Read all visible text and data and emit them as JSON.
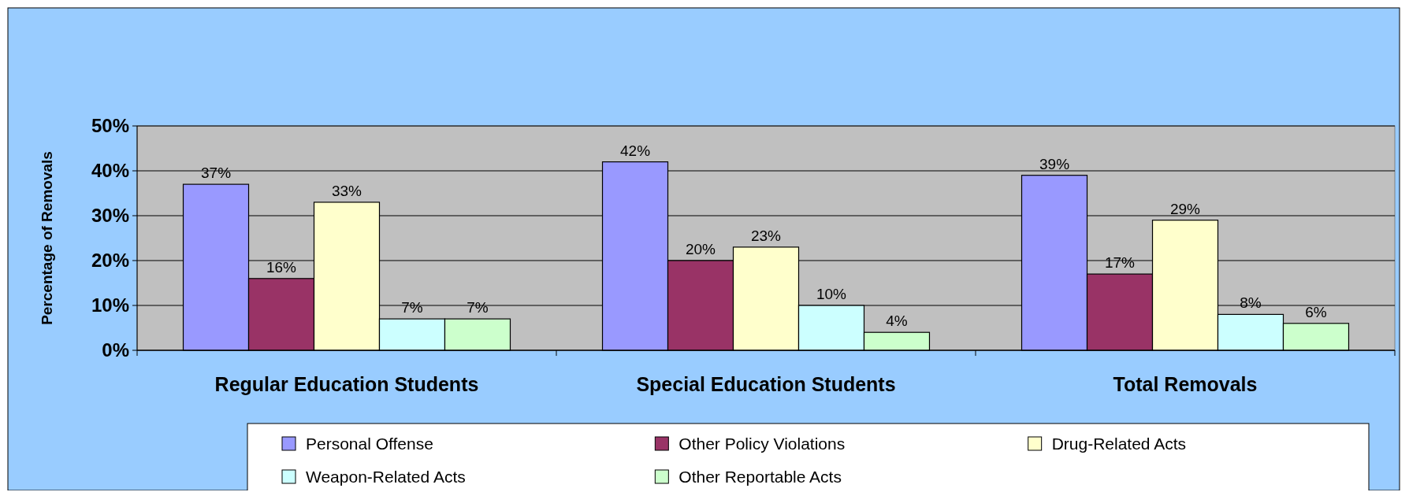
{
  "chart_data": {
    "type": "bar",
    "ylabel": "Percentage of Removals",
    "categories": [
      "Regular Education Students",
      "Special Education Students",
      "Total Removals"
    ],
    "series": [
      {
        "name": "Personal Offense",
        "color": "#9999ff",
        "values": [
          37,
          42,
          39
        ],
        "value_labels": [
          "37%",
          "42%",
          "39%"
        ]
      },
      {
        "name": "Other Policy Violations",
        "color": "#993366",
        "values": [
          16,
          20,
          17
        ],
        "value_labels": [
          "16%",
          "20%",
          "17%"
        ]
      },
      {
        "name": "Drug-Related Acts",
        "color": "#ffffcc",
        "values": [
          33,
          23,
          29
        ],
        "value_labels": [
          "33%",
          "23%",
          "29%"
        ]
      },
      {
        "name": "Weapon-Related Acts",
        "color": "#ccffff",
        "values": [
          7,
          10,
          8
        ],
        "value_labels": [
          "7%",
          "10%",
          "8%"
        ]
      },
      {
        "name": "Other Reportable Acts",
        "color": "#ccffcc",
        "values": [
          7,
          4,
          6
        ],
        "value_labels": [
          "7%",
          "4%",
          "6%"
        ]
      }
    ],
    "ylim": [
      0,
      50
    ],
    "yticks": [
      {
        "value": 0,
        "label": "0%"
      },
      {
        "value": 10,
        "label": "10%"
      },
      {
        "value": 20,
        "label": "20%"
      },
      {
        "value": 30,
        "label": "30%"
      },
      {
        "value": 40,
        "label": "40%"
      },
      {
        "value": 50,
        "label": "50%"
      }
    ],
    "grid": "y",
    "legend": "bottom"
  }
}
